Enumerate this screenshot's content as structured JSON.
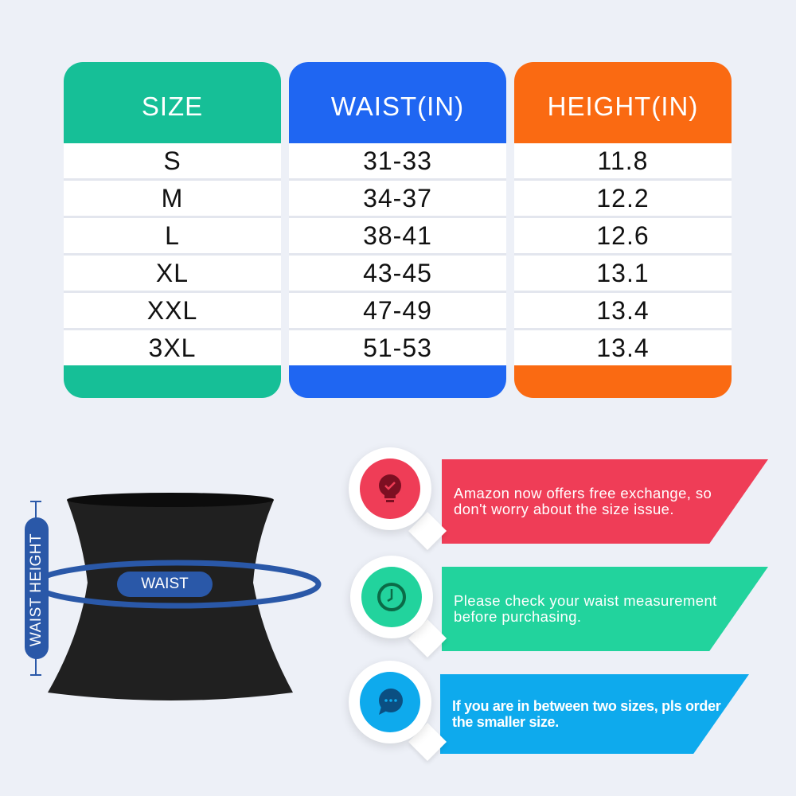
{
  "table": {
    "columns": [
      {
        "header": "SIZE",
        "color": "#16bf97",
        "values": [
          "S",
          "M",
          "L",
          "XL",
          "XXL",
          "3XL"
        ]
      },
      {
        "header": "WAIST(IN)",
        "color": "#1f66f2",
        "values": [
          "31-33",
          "34-37",
          "38-41",
          "43-45",
          "47-49",
          "51-53"
        ]
      },
      {
        "header": "HEIGHT(IN)",
        "color": "#fa6a12",
        "values": [
          "11.8",
          "12.2",
          "12.6",
          "13.1",
          "13.4",
          "13.4"
        ]
      }
    ]
  },
  "diagram": {
    "waist_label": "WAIST",
    "height_label": "WAIST HEIGHT",
    "accent": "#2a58a8"
  },
  "tips": [
    {
      "text": "Amazon now offers free exchange, so don't worry about the size issue.",
      "color": "#ef3d57",
      "icon": "lightbulb-check-icon"
    },
    {
      "text": "Please check your waist measurement before purchasing.",
      "color": "#22d39d",
      "icon": "clock-icon"
    },
    {
      "text": "If you are in between two sizes, pls order the smaller size.",
      "color": "#0eaaed",
      "icon": "chat-bubble-icon"
    }
  ]
}
